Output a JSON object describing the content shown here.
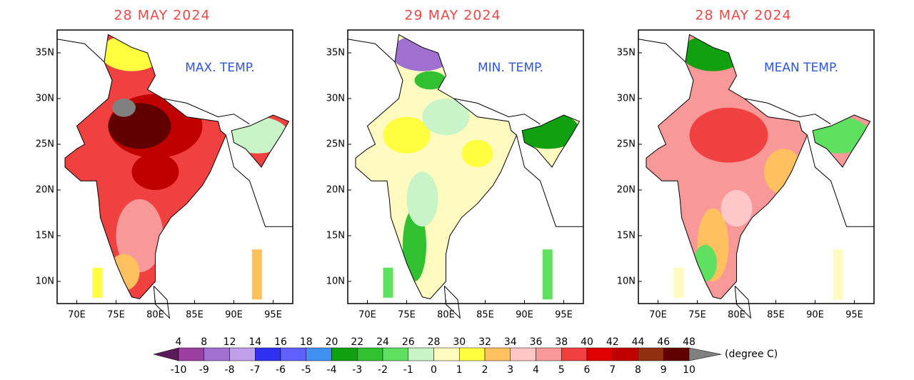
{
  "panels": [
    {
      "date": "28 MAY 2024",
      "label": "MAX. TEMP."
    },
    {
      "date": "29 MAY 2024",
      "label": "MIN. TEMP."
    },
    {
      "date": "28 MAY 2024",
      "label": "MEAN TEMP."
    }
  ],
  "lat_ticks": [
    {
      "value": 35,
      "label": "35N"
    },
    {
      "value": 30,
      "label": "30N"
    },
    {
      "value": 25,
      "label": "25N"
    },
    {
      "value": 20,
      "label": "20N"
    },
    {
      "value": 15,
      "label": "15N"
    },
    {
      "value": 10,
      "label": "10N"
    }
  ],
  "lon_ticks": [
    {
      "value": 70,
      "label": "70E"
    },
    {
      "value": 75,
      "label": "75E"
    },
    {
      "value": 80,
      "label": "80E"
    },
    {
      "value": 85,
      "label": "85E"
    },
    {
      "value": 90,
      "label": "90E"
    },
    {
      "value": 95,
      "label": "95E"
    }
  ],
  "colorbar": {
    "top_labels": [
      "4",
      "8",
      "12",
      "14",
      "16",
      "18",
      "20",
      "22",
      "24",
      "26",
      "28",
      "30",
      "32",
      "34",
      "36",
      "38",
      "40",
      "42",
      "44",
      "46",
      "48"
    ],
    "bottom_labels": [
      "-10",
      "-9",
      "-8",
      "-7",
      "-6",
      "-5",
      "-4",
      "-3",
      "-2",
      "-1",
      "0",
      "1",
      "2",
      "3",
      "4",
      "5",
      "6",
      "7",
      "8",
      "9",
      "10"
    ],
    "unit": "(degree C)",
    "colors": [
      "#5a1a5a",
      "#9b3fa0",
      "#a070d0",
      "#c0a0e8",
      "#3030f0",
      "#6060ff",
      "#4090f0",
      "#10a010",
      "#30c030",
      "#60e060",
      "#c8f4c8",
      "#fffbc0",
      "#ffff40",
      "#ffc060",
      "#ffc8c8",
      "#f89898",
      "#f04040",
      "#e00000",
      "#c00000",
      "#903010",
      "#600000",
      "#808080"
    ]
  }
}
